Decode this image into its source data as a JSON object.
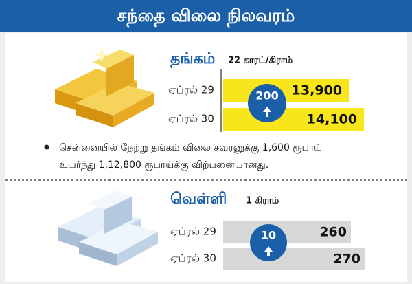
{
  "header": {
    "title": "சந்தை விலை நிலவரம்"
  },
  "gold": {
    "name": "தங்கம்",
    "unit": "22 காரட்/கிராம்",
    "rows": [
      {
        "date": "ஏப்ரல் 29",
        "price": "13,900"
      },
      {
        "date": "ஏப்ரல் 30",
        "price": "14,100"
      }
    ],
    "change": "200"
  },
  "note": [
    "சென்னையில் நேற்று தங்கம் விலை சவரனுக்கு 1,600 ரூபாய்",
    "உயர்ந்து 1,12,800 ரூபாய்க்கு விற்பனையானது."
  ],
  "silver": {
    "name": "வெள்ளி",
    "unit": "1 கிராம்",
    "rows": [
      {
        "date": "ஏப்ரல் 29",
        "price": "260"
      },
      {
        "date": "ஏப்ரல் 30",
        "price": "270"
      }
    ],
    "change": "10"
  }
}
